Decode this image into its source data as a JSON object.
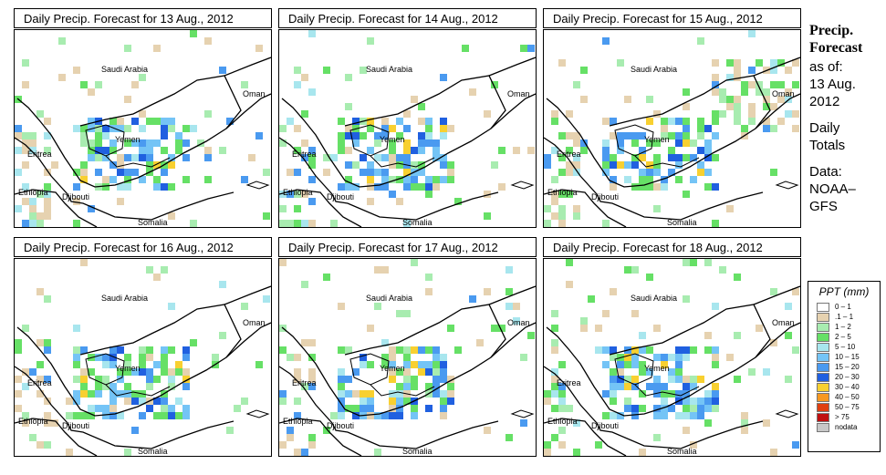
{
  "panels": [
    {
      "title": "Daily Precip. Forecast for  13 Aug., 2012"
    },
    {
      "title": "Daily Precip. Forecast for  14 Aug., 2012"
    },
    {
      "title": "Daily Precip. Forecast for  15 Aug., 2012"
    },
    {
      "title": "Daily Precip. Forecast for  16 Aug., 2012"
    },
    {
      "title": "Daily Precip. Forecast for  17 Aug., 2012"
    },
    {
      "title": "Daily Precip. Forecast for  18 Aug., 2012"
    }
  ],
  "map_labels": {
    "saudi": "Saudi Arabia",
    "oman": "Oman",
    "yemen": "Yemen",
    "eritrea": "Eritrea",
    "ethiopia": "Ethiopia",
    "djibouti": "Djibouti",
    "somalia": "Somalia"
  },
  "side": {
    "heading1": "Precip.",
    "heading2": "Forecast",
    "asof": "as of:",
    "date1": "13 Aug.",
    "date2": "2012",
    "daily1": "Daily",
    "daily2": "Totals",
    "data1": "Data:",
    "data2": "NOAA–",
    "data3": "GFS"
  },
  "legend": {
    "title": "PPT (mm)",
    "items": [
      {
        "label": "0 – 1",
        "color": "#ffffff"
      },
      {
        "label": ".1 – 1",
        "color": "#e6d2b0"
      },
      {
        "label": "1 – 2",
        "color": "#a8ecb0"
      },
      {
        "label": "2 – 5",
        "color": "#66e066"
      },
      {
        "label": "5 – 10",
        "color": "#a8e6ee"
      },
      {
        "label": "10 – 15",
        "color": "#74c4f6"
      },
      {
        "label": "15 – 20",
        "color": "#4a9af0"
      },
      {
        "label": "20 – 30",
        "color": "#2060e0"
      },
      {
        "label": "30 – 40",
        "color": "#f8d030"
      },
      {
        "label": "40 – 50",
        "color": "#f89820"
      },
      {
        "label": "50 – 75",
        "color": "#e04010"
      },
      {
        "label": "> 75",
        "color": "#c01010"
      },
      {
        "label": "nodata",
        "color": "#c8c8c8"
      }
    ]
  }
}
